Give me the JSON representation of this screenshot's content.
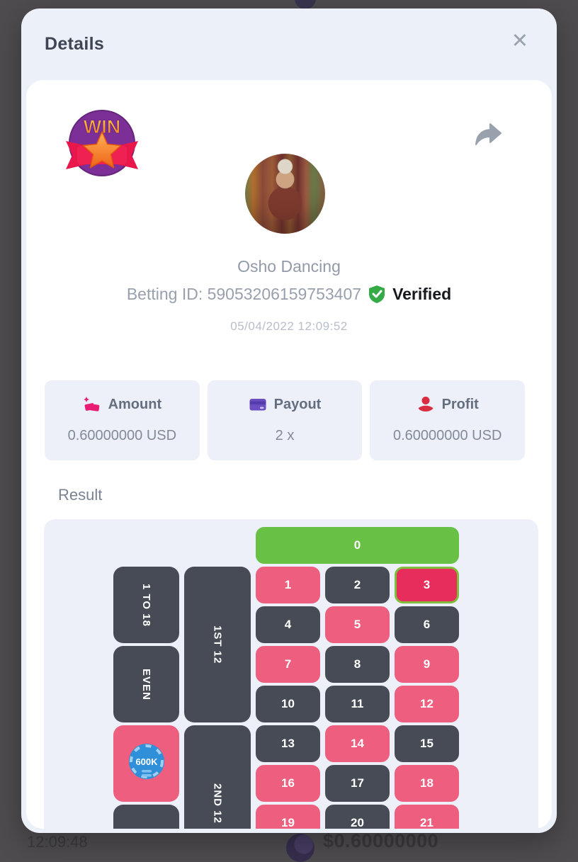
{
  "background_page": {
    "time": "12:09:48",
    "amount": "$0.60000000"
  },
  "modal": {
    "title": "Details",
    "close_glyph": "✕"
  },
  "profile": {
    "badge_text": "WIN",
    "username": "Osho Dancing",
    "betting_id": "Betting ID: 59053206159753407",
    "verified_label": "Verified",
    "datetime": "05/04/2022 12:09:52"
  },
  "stats": [
    {
      "label": "Amount",
      "value": "0.60000000 USD",
      "icon": "money-bag-icon"
    },
    {
      "label": "Payout",
      "value": "2 x",
      "icon": "credit-card-icon"
    },
    {
      "label": "Profit",
      "value": "0.60000000 USD",
      "icon": "hand-coin-icon"
    }
  ],
  "result": {
    "heading": "Result",
    "zero_label": "0",
    "side_labels": [
      "1 TO 18",
      "EVEN"
    ],
    "dozen_labels": [
      "1ST 12",
      "2ND 12"
    ],
    "chip_label": "600K",
    "winning_number": "3",
    "cells": [
      {
        "n": "1",
        "color": "red"
      },
      {
        "n": "2",
        "color": "black"
      },
      {
        "n": "3",
        "color": "red",
        "winner": true
      },
      {
        "n": "4",
        "color": "black"
      },
      {
        "n": "5",
        "color": "red"
      },
      {
        "n": "6",
        "color": "black"
      },
      {
        "n": "7",
        "color": "red"
      },
      {
        "n": "8",
        "color": "black"
      },
      {
        "n": "9",
        "color": "red"
      },
      {
        "n": "10",
        "color": "black"
      },
      {
        "n": "11",
        "color": "black"
      },
      {
        "n": "12",
        "color": "red"
      },
      {
        "n": "13",
        "color": "black"
      },
      {
        "n": "14",
        "color": "red"
      },
      {
        "n": "15",
        "color": "black"
      },
      {
        "n": "16",
        "color": "red"
      },
      {
        "n": "17",
        "color": "black"
      },
      {
        "n": "18",
        "color": "red"
      },
      {
        "n": "19",
        "color": "red"
      },
      {
        "n": "20",
        "color": "black"
      },
      {
        "n": "21",
        "color": "red"
      }
    ]
  },
  "colors": {
    "zero_green": "#68c044",
    "red_cell": "#ee5e7e",
    "black_cell": "#464b55",
    "winner_cell": "#e72d5b",
    "winner_border": "#7fbe3a",
    "chip_blue": "#2f8fd8",
    "verified_green": "#34ab46",
    "amount_pink": "#e81e74",
    "payout_purple": "#6b4ec2",
    "profit_red": "#da2c41"
  }
}
